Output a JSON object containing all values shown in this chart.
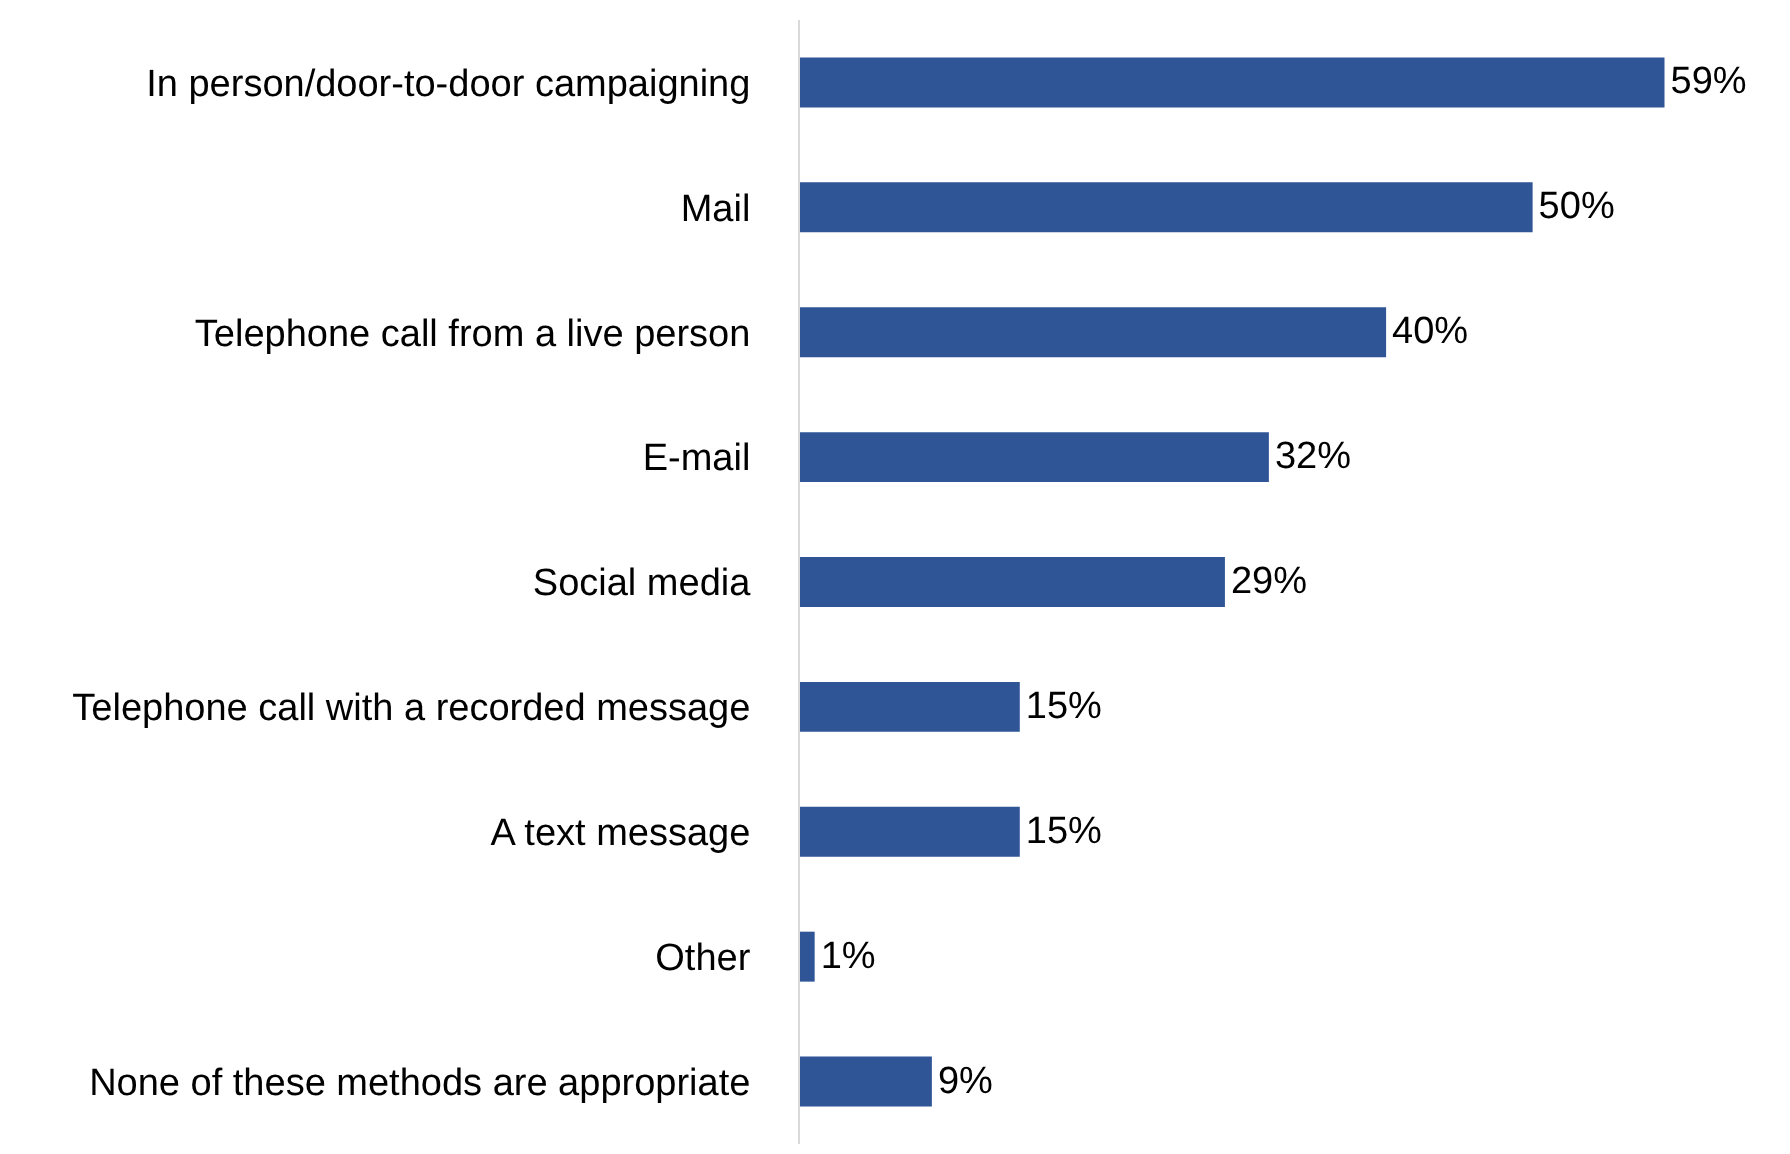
{
  "chart_data": {
    "type": "bar",
    "orientation": "horizontal",
    "categories": [
      "In person/door-to-door campaigning",
      "Mail",
      "Telephone call from a live person",
      "E-mail",
      "Social media",
      "Telephone call with a recorded message",
      "A text message",
      "Other",
      "None of these methods are appropriate"
    ],
    "values": [
      59,
      50,
      40,
      32,
      29,
      15,
      15,
      1,
      9
    ],
    "value_labels": [
      "59%",
      "50%",
      "40%",
      "32%",
      "29%",
      "15%",
      "15%",
      "1%",
      "9%"
    ],
    "color": "#2f5597"
  }
}
